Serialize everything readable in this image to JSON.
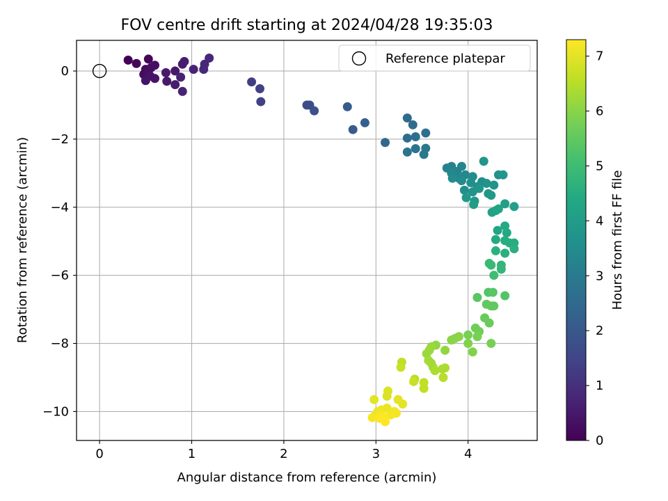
{
  "chart_data": {
    "type": "scatter",
    "title": "FOV centre drift starting at 2024/04/28 19:35:03",
    "xlabel": "Angular distance from reference (arcmin)",
    "ylabel": "Rotation from reference (arcmin)",
    "xlim": [
      -0.25,
      4.75
    ],
    "ylim": [
      -10.85,
      0.9
    ],
    "xticks": [
      0,
      1,
      2,
      3,
      4
    ],
    "yticks": [
      0,
      -2,
      -4,
      -6,
      -8,
      -10
    ],
    "xtick_labels": [
      "0",
      "1",
      "2",
      "3",
      "4"
    ],
    "ytick_labels": [
      "0",
      "−2",
      "−4",
      "−6",
      "−8",
      "−10"
    ],
    "grid": true,
    "legend": {
      "position": "top-right",
      "entries": [
        "Reference platepar"
      ]
    },
    "reference_point": {
      "x": 0.0,
      "y": 0.0
    },
    "colorbar": {
      "label": "Hours from first FF file",
      "colormap": "viridis",
      "range": [
        0,
        7.3
      ],
      "ticks": [
        0,
        1,
        2,
        3,
        4,
        5,
        6,
        7
      ],
      "tick_labels": [
        "0",
        "1",
        "2",
        "3",
        "4",
        "5",
        "6",
        "7"
      ]
    },
    "points": [
      [
        0.31,
        0.32,
        0.0
      ],
      [
        0.4,
        0.22,
        0.1
      ],
      [
        0.53,
        0.35,
        0.1
      ],
      [
        0.5,
        0.05,
        0.2
      ],
      [
        0.48,
        -0.1,
        0.2
      ],
      [
        0.56,
        0.1,
        0.3
      ],
      [
        0.6,
        0.17,
        0.3
      ],
      [
        0.53,
        -0.05,
        0.3
      ],
      [
        0.55,
        -0.15,
        0.4
      ],
      [
        0.5,
        -0.28,
        0.4
      ],
      [
        0.6,
        -0.22,
        0.4
      ],
      [
        0.72,
        -0.05,
        0.5
      ],
      [
        0.73,
        -0.3,
        0.5
      ],
      [
        0.82,
        0.0,
        0.5
      ],
      [
        0.82,
        -0.4,
        0.6
      ],
      [
        0.9,
        0.2,
        0.6
      ],
      [
        0.92,
        0.28,
        0.6
      ],
      [
        0.88,
        -0.18,
        0.7
      ],
      [
        0.9,
        -0.6,
        0.7
      ],
      [
        1.02,
        0.05,
        0.7
      ],
      [
        1.13,
        0.05,
        0.8
      ],
      [
        1.14,
        0.2,
        0.8
      ],
      [
        1.19,
        0.38,
        0.8
      ],
      [
        1.65,
        -0.32,
        1.3
      ],
      [
        1.74,
        -0.52,
        1.4
      ],
      [
        1.75,
        -0.9,
        1.4
      ],
      [
        2.25,
        -1.0,
        1.7
      ],
      [
        2.28,
        -1.0,
        1.7
      ],
      [
        2.33,
        -1.17,
        1.8
      ],
      [
        2.69,
        -1.05,
        2.1
      ],
      [
        2.75,
        -1.72,
        2.1
      ],
      [
        2.88,
        -1.52,
        2.2
      ],
      [
        3.1,
        -2.1,
        2.4
      ],
      [
        3.34,
        -1.38,
        2.5
      ],
      [
        3.4,
        -1.58,
        2.6
      ],
      [
        3.34,
        -1.97,
        2.6
      ],
      [
        3.43,
        -1.93,
        2.7
      ],
      [
        3.54,
        -1.82,
        2.7
      ],
      [
        3.34,
        -2.38,
        2.8
      ],
      [
        3.43,
        -2.28,
        2.8
      ],
      [
        3.52,
        -2.45,
        2.9
      ],
      [
        3.54,
        -2.27,
        2.9
      ],
      [
        3.77,
        -2.85,
        3.2
      ],
      [
        3.82,
        -2.8,
        3.2
      ],
      [
        3.88,
        -2.95,
        3.3
      ],
      [
        3.93,
        -2.8,
        3.3
      ],
      [
        3.82,
        -3.0,
        3.4
      ],
      [
        3.9,
        -3.15,
        3.4
      ],
      [
        3.97,
        -3.05,
        3.4
      ],
      [
        4.05,
        -3.1,
        3.5
      ],
      [
        3.83,
        -3.15,
        3.5
      ],
      [
        3.93,
        -3.22,
        3.5
      ],
      [
        4.03,
        -3.28,
        3.6
      ],
      [
        4.1,
        -3.4,
        3.6
      ],
      [
        4.15,
        -3.25,
        3.6
      ],
      [
        3.96,
        -3.5,
        3.6
      ],
      [
        4.05,
        -3.55,
        3.7
      ],
      [
        4.2,
        -3.3,
        3.7
      ],
      [
        4.28,
        -3.35,
        3.7
      ],
      [
        4.33,
        -3.05,
        3.7
      ],
      [
        4.38,
        -3.05,
        3.8
      ],
      [
        4.17,
        -2.65,
        3.8
      ],
      [
        4.12,
        -3.45,
        3.8
      ],
      [
        4.22,
        -3.6,
        3.8
      ],
      [
        4.25,
        -3.65,
        3.9
      ],
      [
        3.98,
        -3.72,
        3.9
      ],
      [
        4.07,
        -3.82,
        3.9
      ],
      [
        4.06,
        -3.92,
        4.0
      ],
      [
        4.4,
        -3.9,
        4.1
      ],
      [
        4.5,
        -3.98,
        4.1
      ],
      [
        4.26,
        -4.15,
        4.2
      ],
      [
        4.3,
        -4.1,
        4.2
      ],
      [
        4.33,
        -4.05,
        4.3
      ],
      [
        4.32,
        -4.68,
        4.3
      ],
      [
        4.4,
        -4.55,
        4.4
      ],
      [
        4.42,
        -4.75,
        4.4
      ],
      [
        4.3,
        -4.95,
        4.4
      ],
      [
        4.4,
        -4.98,
        4.5
      ],
      [
        4.45,
        -5.05,
        4.5
      ],
      [
        4.5,
        -5.05,
        4.5
      ],
      [
        4.5,
        -5.22,
        4.6
      ],
      [
        4.3,
        -5.28,
        4.6
      ],
      [
        4.4,
        -5.35,
        4.6
      ],
      [
        4.36,
        -5.7,
        4.8
      ],
      [
        4.36,
        -5.82,
        4.8
      ],
      [
        4.23,
        -5.65,
        4.9
      ],
      [
        4.25,
        -5.7,
        4.9
      ],
      [
        4.28,
        -6.0,
        5.0
      ],
      [
        4.4,
        -6.6,
        5.3
      ],
      [
        4.22,
        -6.5,
        5.3
      ],
      [
        4.27,
        -6.5,
        5.4
      ],
      [
        4.1,
        -6.65,
        5.4
      ],
      [
        4.2,
        -6.85,
        5.5
      ],
      [
        4.25,
        -6.9,
        5.5
      ],
      [
        4.28,
        -6.9,
        5.5
      ],
      [
        4.18,
        -7.25,
        5.6
      ],
      [
        4.23,
        -7.4,
        5.6
      ],
      [
        4.08,
        -7.55,
        5.7
      ],
      [
        4.12,
        -7.65,
        5.7
      ],
      [
        4.0,
        -7.75,
        5.8
      ],
      [
        4.1,
        -7.8,
        5.8
      ],
      [
        4.25,
        -8.0,
        5.8
      ],
      [
        4.0,
        -8.0,
        5.9
      ],
      [
        4.05,
        -8.25,
        5.9
      ],
      [
        3.86,
        -7.85,
        6.0
      ],
      [
        3.9,
        -7.8,
        6.0
      ],
      [
        3.82,
        -7.9,
        6.0
      ],
      [
        3.75,
        -8.2,
        6.1
      ],
      [
        3.65,
        -8.05,
        6.1
      ],
      [
        3.6,
        -8.1,
        6.2
      ],
      [
        3.58,
        -8.2,
        6.2
      ],
      [
        3.55,
        -8.3,
        6.2
      ],
      [
        3.57,
        -8.5,
        6.3
      ],
      [
        3.6,
        -8.58,
        6.3
      ],
      [
        3.62,
        -8.7,
        6.3
      ],
      [
        3.64,
        -8.8,
        6.4
      ],
      [
        3.72,
        -8.75,
        6.4
      ],
      [
        3.75,
        -8.72,
        6.4
      ],
      [
        3.73,
        -9.0,
        6.5
      ],
      [
        3.42,
        -9.05,
        6.5
      ],
      [
        3.52,
        -9.15,
        6.6
      ],
      [
        3.52,
        -9.32,
        6.6
      ],
      [
        3.28,
        -8.55,
        6.6
      ],
      [
        3.27,
        -8.7,
        6.7
      ],
      [
        3.41,
        -9.12,
        6.7
      ],
      [
        3.13,
        -9.4,
        6.9
      ],
      [
        3.12,
        -9.55,
        6.9
      ],
      [
        3.24,
        -9.65,
        7.0
      ],
      [
        3.29,
        -9.78,
        7.0
      ],
      [
        2.98,
        -9.65,
        7.0
      ],
      [
        3.12,
        -9.9,
        7.1
      ],
      [
        3.06,
        -9.95,
        7.1
      ],
      [
        3.02,
        -10.0,
        7.1
      ],
      [
        3.0,
        -10.08,
        7.1
      ],
      [
        3.05,
        -10.05,
        7.2
      ],
      [
        3.2,
        -10.0,
        7.2
      ],
      [
        3.22,
        -10.05,
        7.2
      ],
      [
        3.16,
        -10.1,
        7.2
      ],
      [
        2.96,
        -10.18,
        7.2
      ],
      [
        3.04,
        -10.2,
        7.3
      ],
      [
        3.1,
        -10.3,
        7.3
      ],
      [
        3.08,
        -10.15,
        7.3
      ]
    ]
  }
}
